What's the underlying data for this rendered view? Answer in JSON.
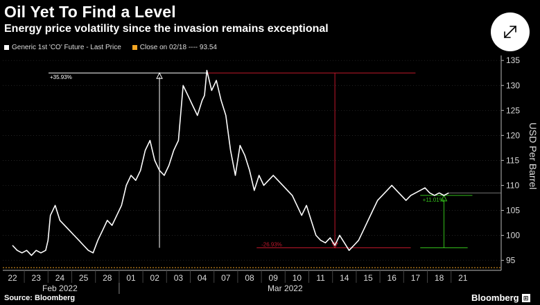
{
  "header": {
    "title": "Oil Yet To Find a Level",
    "subtitle": "Energy price volatility since the invasion remains exceptional"
  },
  "legend": {
    "series_label": "Generic 1st 'CO' Future - Last Price",
    "reference_label": "Close on 02/18 ---- 93.54"
  },
  "footer": {
    "source": "Source: Bloomberg",
    "brand": "Bloomberg"
  },
  "colors": {
    "background": "#000000",
    "price_line": "#ffffff",
    "reference_line": "#f5a623",
    "up_annotation": "#ffffff",
    "down_annotation": "#c0172b",
    "green_annotation": "#34c01b"
  },
  "chart_data": {
    "type": "line",
    "title": "Oil Yet To Find a Level",
    "subtitle": "Energy price volatility since the invasion remains exceptional",
    "ylabel": "USD Per Barrel",
    "ylim": [
      93,
      136
    ],
    "yticks": [
      95,
      100,
      105,
      110,
      115,
      120,
      125,
      130,
      135
    ],
    "x_tick_labels": [
      "22",
      "23",
      "24",
      "25",
      "28",
      "01",
      "02",
      "03",
      "04",
      "07",
      "08",
      "09",
      "10",
      "11",
      "14",
      "15",
      "16",
      "17",
      "18",
      "21"
    ],
    "x_month_labels": [
      "Feb 2022",
      "Mar 2022"
    ],
    "series": [
      {
        "name": "Generic 1st 'CO' Future - Last Price",
        "x": [
          0,
          0.2,
          0.4,
          0.6,
          0.8,
          1.0,
          1.2,
          1.4,
          1.5,
          1.6,
          1.8,
          2.0,
          2.2,
          2.4,
          2.6,
          2.8,
          3.0,
          3.2,
          3.4,
          3.6,
          3.8,
          4.0,
          4.2,
          4.4,
          4.6,
          4.8,
          5.0,
          5.2,
          5.4,
          5.6,
          5.8,
          6.0,
          6.2,
          6.4,
          6.6,
          6.8,
          7.0,
          7.2,
          7.4,
          7.6,
          7.8,
          8.0,
          8.1,
          8.2,
          8.4,
          8.6,
          8.8,
          9.0,
          9.2,
          9.4,
          9.6,
          9.8,
          10.0,
          10.2,
          10.4,
          10.6,
          10.8,
          11.0,
          11.2,
          11.4,
          11.6,
          11.8,
          12.0,
          12.2,
          12.4,
          12.6,
          12.8,
          13.0,
          13.2,
          13.4,
          13.6,
          13.8,
          14.0,
          14.2,
          14.4,
          14.6,
          14.8,
          15.0,
          15.2,
          15.4,
          15.6,
          15.8,
          16.0,
          16.2,
          16.4,
          16.6,
          16.8,
          17.0,
          17.2,
          17.4,
          17.6,
          17.8,
          18.0,
          18.2,
          18.4
        ],
        "values": [
          98,
          97,
          96.5,
          97,
          96,
          97,
          96.5,
          97,
          99,
          104,
          106,
          103,
          102,
          101,
          100,
          99,
          98,
          97,
          96.5,
          99,
          101,
          103,
          102,
          104,
          106,
          110,
          112,
          111,
          113,
          117,
          119,
          115,
          113,
          112,
          114,
          117,
          119,
          130,
          128,
          126,
          124,
          127,
          128,
          133,
          129,
          131,
          127,
          124,
          117,
          112,
          118,
          116,
          113,
          109,
          112,
          110,
          111,
          112,
          111,
          110,
          109,
          108,
          106,
          104,
          106,
          103,
          100,
          99,
          98.5,
          99.5,
          98,
          100,
          98.5,
          97,
          98,
          99,
          101,
          103,
          105,
          107,
          108,
          109,
          110,
          109,
          108,
          107,
          108,
          108.5,
          109,
          109.5,
          108.5,
          108,
          108.5,
          108,
          108.5
        ]
      }
    ],
    "reference_line": {
      "label": "Close on 02/18",
      "value": 93.54
    },
    "annotations": [
      {
        "label": "+35.93%",
        "from": 97.5,
        "to": 132.5,
        "direction": "up"
      },
      {
        "label": "-26.93%",
        "from": 132.5,
        "to": 97.5,
        "direction": "down"
      },
      {
        "label": "+11.01%",
        "from": 97.5,
        "to": 108,
        "direction": "up"
      }
    ]
  }
}
